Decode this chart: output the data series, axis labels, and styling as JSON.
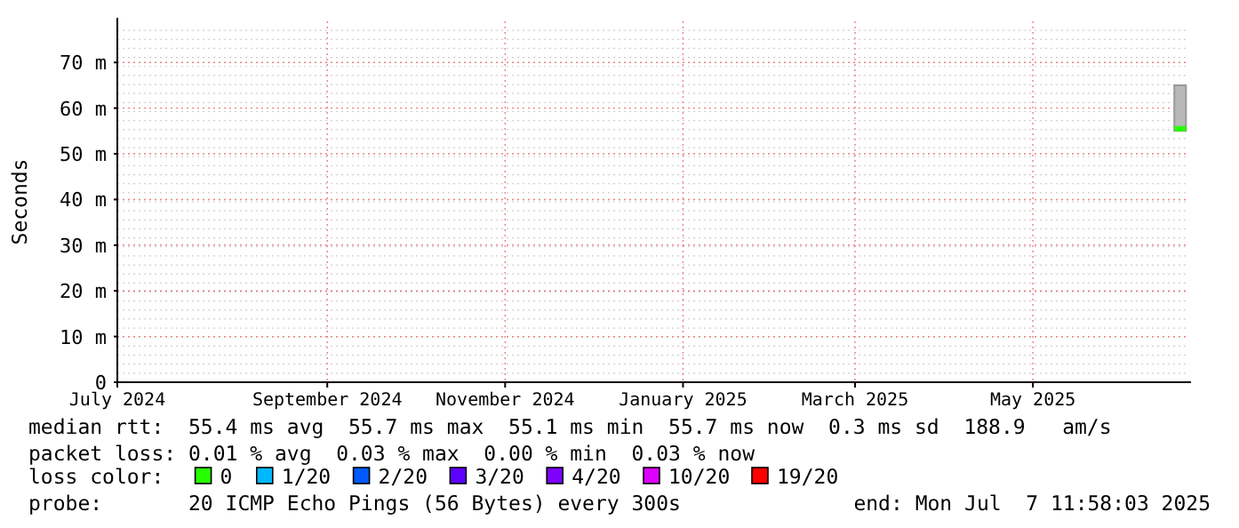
{
  "chart_data": {
    "type": "line",
    "ylabel": "Seconds",
    "x": [
      "2025-07-03T12:00",
      "2025-07-07T11:58"
    ],
    "xlim": [
      "2024-07-06",
      "2025-07-08"
    ],
    "xticks": [
      {
        "value": "2024-07-06",
        "label": "July 2024"
      },
      {
        "value": "2024-09-16",
        "label": "September 2024"
      },
      {
        "value": "2024-11-16",
        "label": "November 2024"
      },
      {
        "value": "2025-01-16",
        "label": "January 2025"
      },
      {
        "value": "2025-03-16",
        "label": "March 2025"
      },
      {
        "value": "2025-05-16",
        "label": "May 2025"
      }
    ],
    "ylim": [
      0,
      79
    ],
    "yticks": [
      0,
      {
        "value": 10,
        "label": "10 m"
      },
      {
        "value": 20,
        "label": "20 m"
      },
      {
        "value": 30,
        "label": "30 m"
      },
      {
        "value": 40,
        "label": "40 m"
      },
      {
        "value": 50,
        "label": "50 m"
      },
      {
        "value": 60,
        "label": "60 m"
      },
      {
        "value": 70,
        "label": "70 m"
      }
    ],
    "series": [
      {
        "name": "0",
        "color": "#26ff00",
        "values": [
          55.5,
          55.5
        ],
        "lower": [
          55,
          55
        ],
        "upper": [
          65,
          65
        ]
      },
      {
        "name": "1/20",
        "color": "#00b8ff",
        "values": [
          null,
          null
        ]
      },
      {
        "name": "2/20",
        "color": "#0059ff",
        "values": [
          null,
          null
        ]
      },
      {
        "name": "3/20",
        "color": "#5e00ff",
        "values": [
          null,
          null
        ]
      },
      {
        "name": "4/20",
        "color": "#7e00ff",
        "values": [
          null,
          null
        ]
      },
      {
        "name": "10/20",
        "color": "#dd00ff",
        "values": [
          null,
          null
        ]
      },
      {
        "name": "19/20",
        "color": "#ff0000",
        "values": [
          null,
          null
        ]
      }
    ],
    "legend_title": "loss color:",
    "legend": "bottom",
    "grid": true,
    "annotations": [
      "median rtt:  55.4 ms avg  55.7 ms max  55.1 ms min  55.7 ms now  0.3 ms sd  188.9   am/s",
      "packet loss: 0.01 % avg  0.03 % max  0.00 % min  0.03 % now",
      "probe:       20 ICMP Echo Pings (56 Bytes) every 300s",
      "end: Mon Jul  7 11:58:03 2025"
    ]
  }
}
